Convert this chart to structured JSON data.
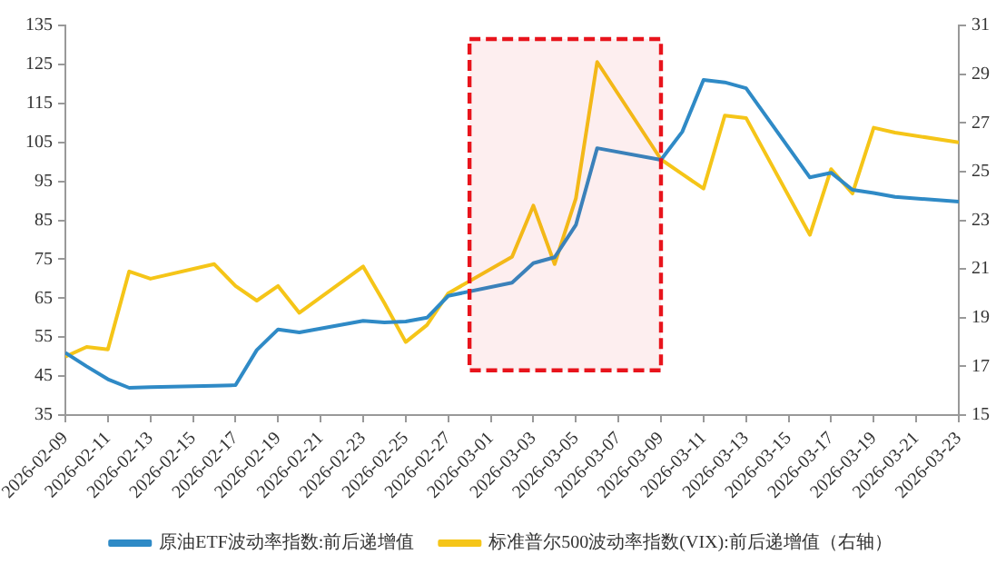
{
  "chart_data": {
    "type": "line",
    "x": [
      "2026-02-09",
      "2026-02-10",
      "2026-02-11",
      "2026-02-12",
      "2026-02-13",
      "2026-02-16",
      "2026-02-17",
      "2026-02-18",
      "2026-02-19",
      "2026-02-20",
      "2026-02-23",
      "2026-02-24",
      "2026-02-25",
      "2026-02-26",
      "2026-02-27",
      "2026-03-02",
      "2026-03-03",
      "2026-03-04",
      "2026-03-05",
      "2026-03-06",
      "2026-03-09",
      "2026-03-10",
      "2026-03-11",
      "2026-03-12",
      "2026-03-13",
      "2026-03-16",
      "2026-03-17",
      "2026-03-18",
      "2026-03-19",
      "2026-03-20",
      "2026-03-23"
    ],
    "series": [
      {
        "name": "原油ETF波动率指数:前后递增值",
        "color": "#2f8ac6",
        "values": [
          51,
          47.5,
          44.2,
          42,
          42.2,
          42.5,
          42.7,
          51.7,
          57,
          56.2,
          59.2,
          58.8,
          59,
          60,
          65.6,
          69,
          74,
          75.5,
          83.8,
          103.5,
          100.5,
          107.7,
          121,
          120.4,
          118.9,
          96,
          97.2,
          92.8,
          92,
          91,
          89.8
        ]
      },
      {
        "name": "标准普尔500波动率指数(VIX):前后递增值（右轴）",
        "color": "#f5c518",
        "axis": "y2",
        "values": [
          17.4,
          17.8,
          17.7,
          20.9,
          20.6,
          21.2,
          20.3,
          19.7,
          20.3,
          19.2,
          21.1,
          19.6,
          18,
          18.7,
          20,
          21.5,
          23.6,
          21.2,
          23.9,
          29.5,
          25.5,
          24.9,
          24.3,
          27.3,
          27.2,
          22.4,
          25.1,
          24.1,
          26.8,
          26.6,
          26.2
        ]
      }
    ],
    "xlim": [
      "2026-02-09",
      "2026-03-23"
    ],
    "xticks": [
      "2026-02-09",
      "2026-02-11",
      "2026-02-13",
      "2026-02-15",
      "2026-02-17",
      "2026-02-19",
      "2026-02-21",
      "2026-02-23",
      "2026-02-25",
      "2026-02-27",
      "2026-03-01",
      "2026-03-03",
      "2026-03-05",
      "2026-03-07",
      "2026-03-09",
      "2026-03-11",
      "2026-03-13",
      "2026-03-15",
      "2026-03-17",
      "2026-03-19",
      "2026-03-21",
      "2026-03-23"
    ],
    "ylim": [
      35,
      135
    ],
    "yticks": [
      35,
      45,
      55,
      65,
      75,
      85,
      95,
      105,
      115,
      125,
      135
    ],
    "y2lim": [
      15,
      31
    ],
    "y2ticks": [
      15,
      17,
      19,
      21,
      23,
      25,
      27,
      29,
      31
    ],
    "bands": [
      {
        "axis": "x",
        "from": "2026-02-28",
        "to": "2026-03-09",
        "color": "#e8141c"
      }
    ],
    "grid": false,
    "legend": "bottom",
    "marker": "none",
    "line_style": "solid"
  }
}
